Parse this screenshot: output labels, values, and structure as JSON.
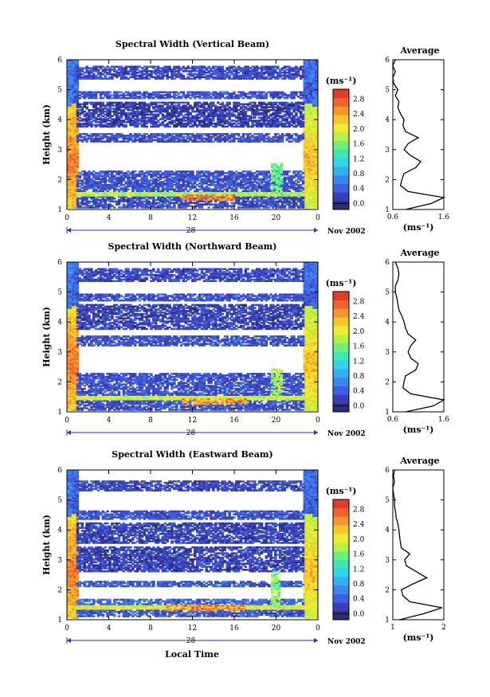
{
  "figure": {
    "xlabel": "Local Time",
    "day_label": "28",
    "month_label": "Nov 2002",
    "unit_label": "(ms⁻¹)",
    "avg_title": "Average"
  },
  "chart_data": [
    {
      "type": "heatmap",
      "title": "Spectral Width (Vertical Beam)",
      "xlabel": "",
      "ylabel": "Height (km)",
      "xlim": [
        0,
        24
      ],
      "ylim": [
        1,
        6
      ],
      "xticks": [
        "0",
        "4",
        "8",
        "12",
        "16",
        "20",
        "0"
      ],
      "yticks": [
        "1",
        "2",
        "3",
        "4",
        "5",
        "6"
      ],
      "colorbar": {
        "label": "(ms⁻¹)",
        "range": [
          0,
          3.0
        ],
        "ticks": [
          "0.0",
          "0.4",
          "0.8",
          "1.2",
          "1.6",
          "2.0",
          "2.4",
          "2.8"
        ]
      },
      "bands": [
        {
          "h0": 1.05,
          "h1": 1.45,
          "level": 0.4
        },
        {
          "h0": 1.45,
          "h1": 1.6,
          "level": 1.8
        },
        {
          "h0": 1.6,
          "h1": 2.25,
          "level": 0.45
        },
        {
          "h0": 3.25,
          "h1": 3.5,
          "level": 0.45
        },
        {
          "h0": 3.75,
          "h1": 4.55,
          "level": 0.3
        },
        {
          "h0": 4.7,
          "h1": 4.9,
          "level": 0.45
        },
        {
          "h0": 5.35,
          "h1": 5.75,
          "level": 0.4
        }
      ],
      "hotspots": [
        {
          "t0": 11,
          "t1": 16,
          "h0": 1.3,
          "h1": 1.5,
          "level": 2.6
        },
        {
          "t0": 19.5,
          "t1": 20.5,
          "h0": 1.5,
          "h1": 2.5,
          "level": 1.6
        }
      ],
      "avg_profile": {
        "xlabel": "(ms⁻¹)",
        "xlim": [
          0.5,
          1.5
        ],
        "xticks": [
          "0.6",
          "1.6"
        ],
        "heights": [
          1.0,
          1.2,
          1.4,
          1.6,
          1.8,
          2.0,
          2.2,
          2.4,
          2.6,
          2.8,
          3.0,
          3.2,
          3.4,
          3.6,
          3.8,
          4.0,
          4.2,
          4.4,
          4.6,
          4.8,
          5.0,
          5.2,
          5.4,
          5.6,
          5.8,
          6.0
        ],
        "values": [
          0.75,
          1.25,
          1.5,
          0.8,
          0.65,
          0.68,
          0.72,
          0.95,
          1.05,
          0.85,
          0.72,
          0.8,
          1.0,
          0.75,
          0.7,
          0.72,
          0.65,
          0.6,
          0.62,
          0.55,
          0.6,
          0.52,
          0.5,
          0.55,
          0.5,
          0.55
        ]
      }
    },
    {
      "type": "heatmap",
      "title": "Spectral Width (Northward Beam)",
      "xlabel": "",
      "ylabel": "Height (km)",
      "xlim": [
        0,
        24
      ],
      "ylim": [
        1,
        6
      ],
      "xticks": [
        "0",
        "4",
        "8",
        "12",
        "16",
        "20",
        "0"
      ],
      "yticks": [
        "1",
        "2",
        "3",
        "4",
        "5",
        "6"
      ],
      "colorbar": {
        "label": "(ms⁻¹)",
        "range": [
          0,
          3.0
        ],
        "ticks": [
          "0.0",
          "0.4",
          "0.8",
          "1.2",
          "1.6",
          "2.0",
          "2.4",
          "2.8"
        ]
      },
      "bands": [
        {
          "h0": 1.05,
          "h1": 1.4,
          "level": 0.45
        },
        {
          "h0": 1.4,
          "h1": 1.55,
          "level": 1.9
        },
        {
          "h0": 1.55,
          "h1": 2.25,
          "level": 0.45
        },
        {
          "h0": 3.2,
          "h1": 3.5,
          "level": 0.45
        },
        {
          "h0": 3.75,
          "h1": 4.55,
          "level": 0.35
        },
        {
          "h0": 4.7,
          "h1": 4.9,
          "level": 0.45
        },
        {
          "h0": 5.35,
          "h1": 5.75,
          "level": 0.4
        }
      ],
      "hotspots": [
        {
          "t0": 11,
          "t1": 17,
          "h0": 1.25,
          "h1": 1.45,
          "level": 2.4
        },
        {
          "t0": 19.5,
          "t1": 20.5,
          "h0": 1.4,
          "h1": 2.4,
          "level": 1.8
        }
      ],
      "avg_profile": {
        "xlabel": "(ms⁻¹)",
        "xlim": [
          0.5,
          1.5
        ],
        "xticks": [
          "0.6",
          "1.6"
        ],
        "heights": [
          1.0,
          1.2,
          1.4,
          1.6,
          1.8,
          2.0,
          2.2,
          2.4,
          2.6,
          2.8,
          3.0,
          3.2,
          3.4,
          3.6,
          3.8,
          4.0,
          4.2,
          4.4,
          4.6,
          4.8,
          5.0,
          5.2,
          5.4,
          5.6,
          5.8,
          6.0
        ],
        "values": [
          0.75,
          1.3,
          1.5,
          0.85,
          0.7,
          0.72,
          0.75,
          0.95,
          1.0,
          0.85,
          0.8,
          0.85,
          0.95,
          0.8,
          0.75,
          0.72,
          0.68,
          0.62,
          0.6,
          0.58,
          0.55,
          0.55,
          0.6,
          0.62,
          0.6,
          0.55
        ]
      }
    },
    {
      "type": "heatmap",
      "title": "Spectral Width (Eastward Beam)",
      "xlabel": "Local Time",
      "ylabel": "Height (km)",
      "xlim": [
        0,
        24
      ],
      "ylim": [
        1,
        6
      ],
      "xticks": [
        "0",
        "4",
        "8",
        "12",
        "16",
        "20",
        "0"
      ],
      "yticks": [
        "1",
        "2",
        "3",
        "4",
        "5",
        "6"
      ],
      "colorbar": {
        "label": "(ms⁻¹)",
        "range": [
          0,
          3.0
        ],
        "ticks": [
          "0.0",
          "0.4",
          "0.8",
          "1.2",
          "1.6",
          "2.0",
          "2.4",
          "2.8"
        ]
      },
      "bands": [
        {
          "h0": 1.1,
          "h1": 1.35,
          "level": 0.5
        },
        {
          "h0": 1.35,
          "h1": 1.5,
          "level": 2.0
        },
        {
          "h0": 1.5,
          "h1": 1.7,
          "level": 0.6
        },
        {
          "h0": 2.1,
          "h1": 2.25,
          "level": 0.5
        },
        {
          "h0": 2.6,
          "h1": 3.4,
          "level": 0.35
        },
        {
          "h0": 3.55,
          "h1": 4.2,
          "level": 0.35
        },
        {
          "h0": 4.35,
          "h1": 4.6,
          "level": 0.45
        },
        {
          "h0": 5.3,
          "h1": 5.6,
          "level": 0.4
        }
      ],
      "hotspots": [
        {
          "t0": 9.5,
          "t1": 17,
          "h0": 1.3,
          "h1": 1.5,
          "level": 2.5
        },
        {
          "t0": 19.5,
          "t1": 20.3,
          "h0": 1.4,
          "h1": 2.6,
          "level": 1.7
        }
      ],
      "avg_profile": {
        "xlabel": "(ms⁻¹)",
        "xlim": [
          0.5,
          2.0
        ],
        "xticks": [
          "1",
          "2"
        ],
        "heights": [
          1.0,
          1.2,
          1.4,
          1.6,
          1.8,
          2.0,
          2.2,
          2.4,
          2.6,
          2.8,
          3.0,
          3.2,
          3.4,
          3.6,
          3.8,
          4.0,
          4.2,
          4.4,
          4.6,
          4.8,
          5.0,
          5.2,
          5.4,
          5.6,
          5.8,
          6.0
        ],
        "values": [
          0.7,
          1.4,
          1.95,
          1.0,
          0.8,
          0.75,
          1.1,
          1.5,
          1.2,
          0.9,
          0.85,
          1.0,
          0.75,
          0.72,
          0.7,
          0.68,
          0.65,
          0.6,
          0.58,
          0.55,
          0.55,
          0.52,
          0.5,
          0.55,
          0.52,
          0.55
        ]
      }
    }
  ]
}
